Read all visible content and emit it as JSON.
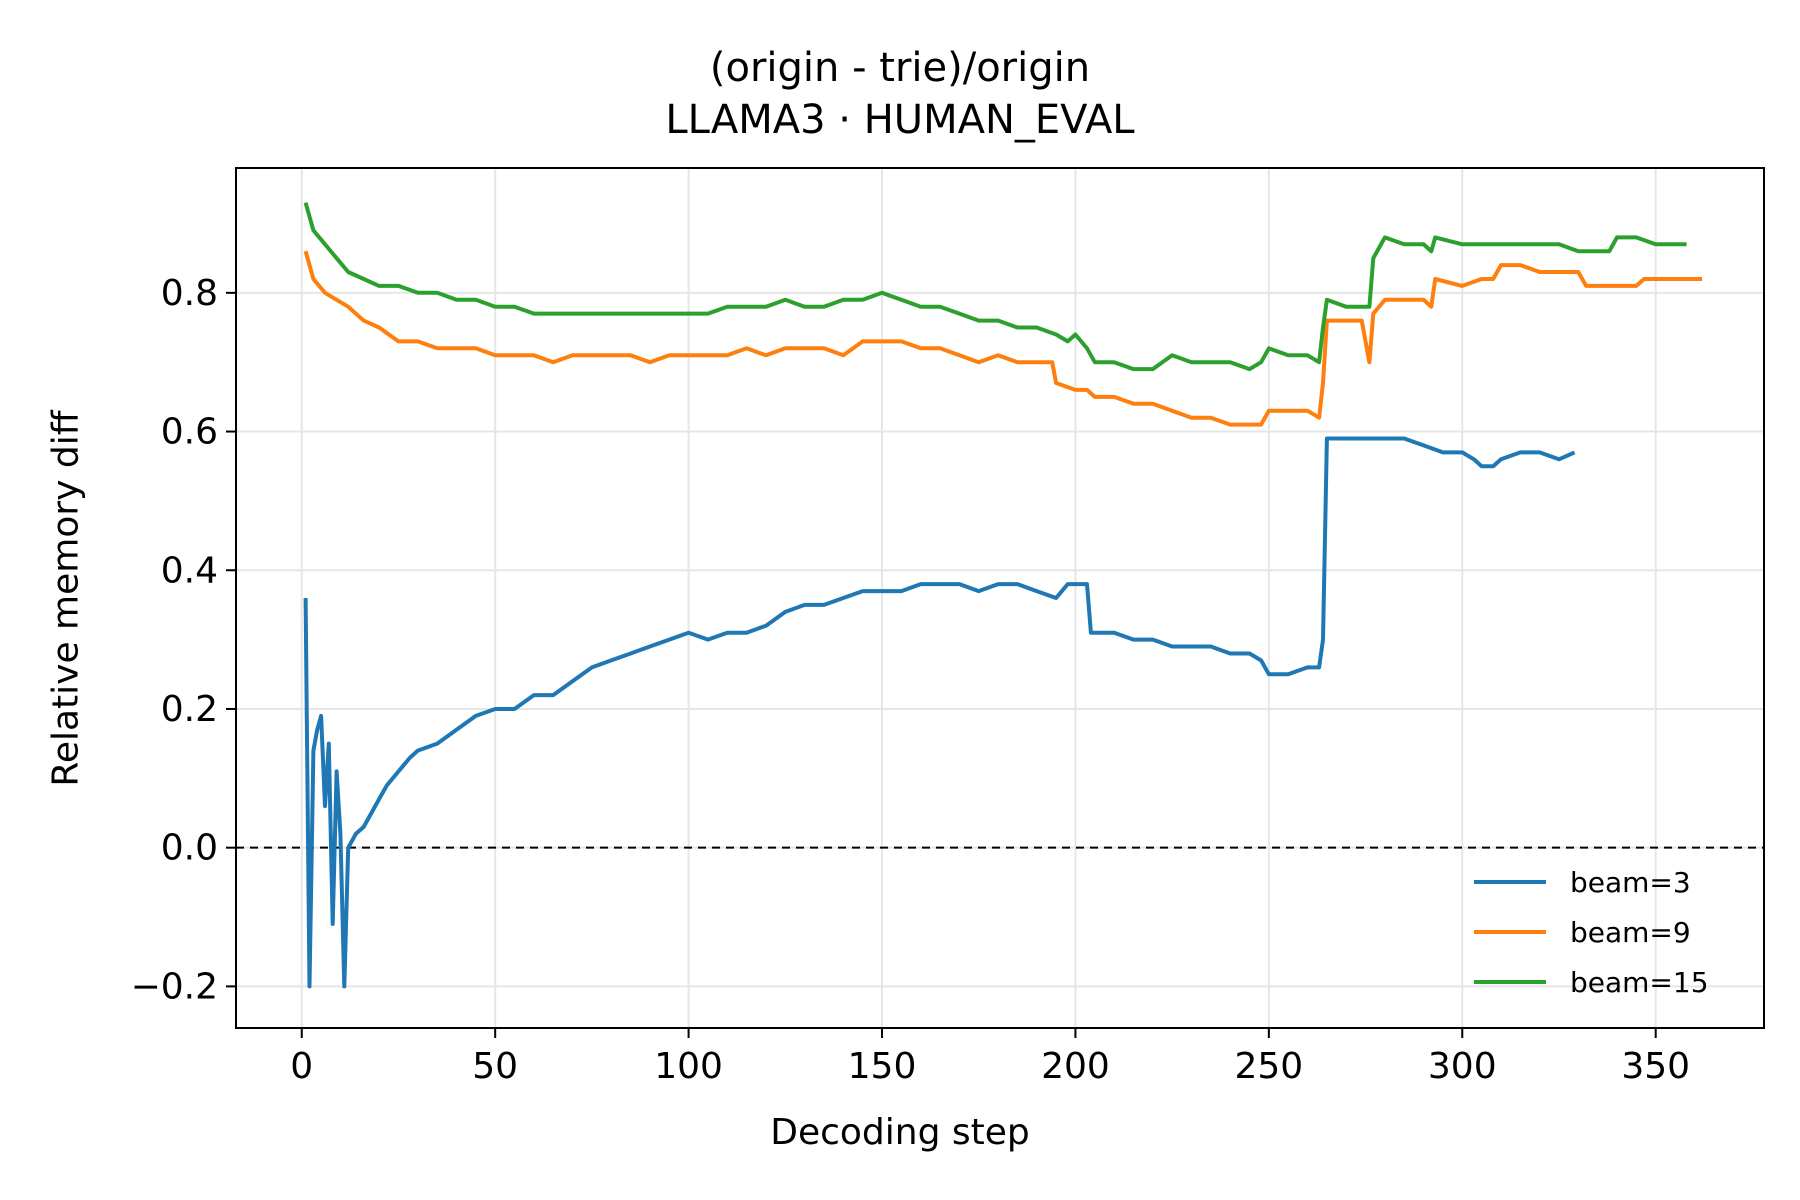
{
  "chart_data": {
    "type": "line",
    "title": "(origin - trie)/origin",
    "subtitle": "LLAMA3 · HUMAN_EVAL",
    "xlabel": "Decoding step",
    "ylabel": "Relative memory diff",
    "xlim": [
      -17,
      378
    ],
    "ylim": [
      -0.26,
      0.98
    ],
    "xticks": [
      0,
      50,
      100,
      150,
      200,
      250,
      300,
      350
    ],
    "yticks": [
      -0.2,
      0.0,
      0.2,
      0.4,
      0.6,
      0.8
    ],
    "xtick_labels": [
      "0",
      "50",
      "100",
      "150",
      "200",
      "250",
      "300",
      "350"
    ],
    "ytick_labels": [
      "−0.2",
      "0.0",
      "0.2",
      "0.4",
      "0.6",
      "0.8"
    ],
    "grid": true,
    "reference_line": {
      "y": 0.0,
      "style": "dashed",
      "color": "#000000"
    },
    "legend_position": "lower-right",
    "series": [
      {
        "name": "beam=3",
        "color": "#1f77b4",
        "points": [
          [
            1,
            0.36
          ],
          [
            2,
            -0.2
          ],
          [
            3,
            0.14
          ],
          [
            4,
            0.17
          ],
          [
            5,
            0.19
          ],
          [
            6,
            0.06
          ],
          [
            7,
            0.15
          ],
          [
            8,
            -0.11
          ],
          [
            9,
            0.11
          ],
          [
            10,
            0.02
          ],
          [
            11,
            -0.2
          ],
          [
            12,
            0.0
          ],
          [
            14,
            0.02
          ],
          [
            16,
            0.03
          ],
          [
            18,
            0.05
          ],
          [
            20,
            0.07
          ],
          [
            22,
            0.09
          ],
          [
            25,
            0.11
          ],
          [
            28,
            0.13
          ],
          [
            30,
            0.14
          ],
          [
            35,
            0.15
          ],
          [
            40,
            0.17
          ],
          [
            45,
            0.19
          ],
          [
            50,
            0.2
          ],
          [
            55,
            0.2
          ],
          [
            60,
            0.22
          ],
          [
            65,
            0.22
          ],
          [
            70,
            0.24
          ],
          [
            75,
            0.26
          ],
          [
            80,
            0.27
          ],
          [
            85,
            0.28
          ],
          [
            90,
            0.29
          ],
          [
            95,
            0.3
          ],
          [
            100,
            0.31
          ],
          [
            105,
            0.3
          ],
          [
            110,
            0.31
          ],
          [
            115,
            0.31
          ],
          [
            120,
            0.32
          ],
          [
            125,
            0.34
          ],
          [
            130,
            0.35
          ],
          [
            135,
            0.35
          ],
          [
            140,
            0.36
          ],
          [
            145,
            0.37
          ],
          [
            150,
            0.37
          ],
          [
            155,
            0.37
          ],
          [
            160,
            0.38
          ],
          [
            165,
            0.38
          ],
          [
            170,
            0.38
          ],
          [
            175,
            0.37
          ],
          [
            180,
            0.38
          ],
          [
            185,
            0.38
          ],
          [
            190,
            0.37
          ],
          [
            195,
            0.36
          ],
          [
            198,
            0.38
          ],
          [
            203,
            0.38
          ],
          [
            204,
            0.31
          ],
          [
            210,
            0.31
          ],
          [
            215,
            0.3
          ],
          [
            220,
            0.3
          ],
          [
            225,
            0.29
          ],
          [
            230,
            0.29
          ],
          [
            235,
            0.29
          ],
          [
            240,
            0.28
          ],
          [
            245,
            0.28
          ],
          [
            248,
            0.27
          ],
          [
            250,
            0.25
          ],
          [
            255,
            0.25
          ],
          [
            260,
            0.26
          ],
          [
            263,
            0.26
          ],
          [
            264,
            0.3
          ],
          [
            265,
            0.59
          ],
          [
            270,
            0.59
          ],
          [
            275,
            0.59
          ],
          [
            280,
            0.59
          ],
          [
            285,
            0.59
          ],
          [
            290,
            0.58
          ],
          [
            295,
            0.57
          ],
          [
            300,
            0.57
          ],
          [
            303,
            0.56
          ],
          [
            305,
            0.55
          ],
          [
            308,
            0.55
          ],
          [
            310,
            0.56
          ],
          [
            315,
            0.57
          ],
          [
            320,
            0.57
          ],
          [
            325,
            0.56
          ],
          [
            329,
            0.57
          ]
        ]
      },
      {
        "name": "beam=9",
        "color": "#ff7f0e",
        "points": [
          [
            1,
            0.86
          ],
          [
            3,
            0.82
          ],
          [
            6,
            0.8
          ],
          [
            9,
            0.79
          ],
          [
            12,
            0.78
          ],
          [
            16,
            0.76
          ],
          [
            20,
            0.75
          ],
          [
            25,
            0.73
          ],
          [
            30,
            0.73
          ],
          [
            35,
            0.72
          ],
          [
            40,
            0.72
          ],
          [
            45,
            0.72
          ],
          [
            50,
            0.71
          ],
          [
            55,
            0.71
          ],
          [
            60,
            0.71
          ],
          [
            65,
            0.7
          ],
          [
            70,
            0.71
          ],
          [
            75,
            0.71
          ],
          [
            80,
            0.71
          ],
          [
            85,
            0.71
          ],
          [
            90,
            0.7
          ],
          [
            95,
            0.71
          ],
          [
            100,
            0.71
          ],
          [
            105,
            0.71
          ],
          [
            110,
            0.71
          ],
          [
            115,
            0.72
          ],
          [
            120,
            0.71
          ],
          [
            125,
            0.72
          ],
          [
            130,
            0.72
          ],
          [
            135,
            0.72
          ],
          [
            140,
            0.71
          ],
          [
            145,
            0.73
          ],
          [
            150,
            0.73
          ],
          [
            155,
            0.73
          ],
          [
            160,
            0.72
          ],
          [
            165,
            0.72
          ],
          [
            170,
            0.71
          ],
          [
            175,
            0.7
          ],
          [
            180,
            0.71
          ],
          [
            185,
            0.7
          ],
          [
            190,
            0.7
          ],
          [
            194,
            0.7
          ],
          [
            195,
            0.67
          ],
          [
            200,
            0.66
          ],
          [
            203,
            0.66
          ],
          [
            205,
            0.65
          ],
          [
            210,
            0.65
          ],
          [
            215,
            0.64
          ],
          [
            220,
            0.64
          ],
          [
            225,
            0.63
          ],
          [
            230,
            0.62
          ],
          [
            235,
            0.62
          ],
          [
            240,
            0.61
          ],
          [
            245,
            0.61
          ],
          [
            248,
            0.61
          ],
          [
            250,
            0.63
          ],
          [
            255,
            0.63
          ],
          [
            260,
            0.63
          ],
          [
            263,
            0.62
          ],
          [
            264,
            0.67
          ],
          [
            265,
            0.76
          ],
          [
            270,
            0.76
          ],
          [
            274,
            0.76
          ],
          [
            276,
            0.7
          ],
          [
            277,
            0.77
          ],
          [
            280,
            0.79
          ],
          [
            285,
            0.79
          ],
          [
            290,
            0.79
          ],
          [
            292,
            0.78
          ],
          [
            293,
            0.82
          ],
          [
            300,
            0.81
          ],
          [
            305,
            0.82
          ],
          [
            308,
            0.82
          ],
          [
            310,
            0.84
          ],
          [
            315,
            0.84
          ],
          [
            320,
            0.83
          ],
          [
            325,
            0.83
          ],
          [
            330,
            0.83
          ],
          [
            332,
            0.81
          ],
          [
            335,
            0.81
          ],
          [
            340,
            0.81
          ],
          [
            345,
            0.81
          ],
          [
            347,
            0.82
          ],
          [
            350,
            0.82
          ],
          [
            355,
            0.82
          ],
          [
            360,
            0.82
          ],
          [
            362,
            0.82
          ]
        ]
      },
      {
        "name": "beam=15",
        "color": "#2ca02c",
        "points": [
          [
            1,
            0.93
          ],
          [
            3,
            0.89
          ],
          [
            6,
            0.87
          ],
          [
            9,
            0.85
          ],
          [
            12,
            0.83
          ],
          [
            16,
            0.82
          ],
          [
            20,
            0.81
          ],
          [
            25,
            0.81
          ],
          [
            30,
            0.8
          ],
          [
            35,
            0.8
          ],
          [
            40,
            0.79
          ],
          [
            45,
            0.79
          ],
          [
            50,
            0.78
          ],
          [
            55,
            0.78
          ],
          [
            60,
            0.77
          ],
          [
            65,
            0.77
          ],
          [
            70,
            0.77
          ],
          [
            75,
            0.77
          ],
          [
            80,
            0.77
          ],
          [
            85,
            0.77
          ],
          [
            90,
            0.77
          ],
          [
            95,
            0.77
          ],
          [
            100,
            0.77
          ],
          [
            105,
            0.77
          ],
          [
            110,
            0.78
          ],
          [
            115,
            0.78
          ],
          [
            120,
            0.78
          ],
          [
            125,
            0.79
          ],
          [
            130,
            0.78
          ],
          [
            135,
            0.78
          ],
          [
            140,
            0.79
          ],
          [
            145,
            0.79
          ],
          [
            150,
            0.8
          ],
          [
            155,
            0.79
          ],
          [
            160,
            0.78
          ],
          [
            165,
            0.78
          ],
          [
            170,
            0.77
          ],
          [
            175,
            0.76
          ],
          [
            180,
            0.76
          ],
          [
            185,
            0.75
          ],
          [
            190,
            0.75
          ],
          [
            195,
            0.74
          ],
          [
            198,
            0.73
          ],
          [
            200,
            0.74
          ],
          [
            203,
            0.72
          ],
          [
            205,
            0.7
          ],
          [
            210,
            0.7
          ],
          [
            215,
            0.69
          ],
          [
            220,
            0.69
          ],
          [
            225,
            0.71
          ],
          [
            230,
            0.7
          ],
          [
            235,
            0.7
          ],
          [
            240,
            0.7
          ],
          [
            245,
            0.69
          ],
          [
            248,
            0.7
          ],
          [
            250,
            0.72
          ],
          [
            255,
            0.71
          ],
          [
            260,
            0.71
          ],
          [
            263,
            0.7
          ],
          [
            264,
            0.75
          ],
          [
            265,
            0.79
          ],
          [
            270,
            0.78
          ],
          [
            274,
            0.78
          ],
          [
            276,
            0.78
          ],
          [
            277,
            0.85
          ],
          [
            280,
            0.88
          ],
          [
            285,
            0.87
          ],
          [
            290,
            0.87
          ],
          [
            292,
            0.86
          ],
          [
            293,
            0.88
          ],
          [
            300,
            0.87
          ],
          [
            305,
            0.87
          ],
          [
            310,
            0.87
          ],
          [
            315,
            0.87
          ],
          [
            320,
            0.87
          ],
          [
            325,
            0.87
          ],
          [
            330,
            0.86
          ],
          [
            335,
            0.86
          ],
          [
            338,
            0.86
          ],
          [
            340,
            0.88
          ],
          [
            345,
            0.88
          ],
          [
            350,
            0.87
          ],
          [
            355,
            0.87
          ],
          [
            358,
            0.87
          ]
        ]
      }
    ]
  }
}
